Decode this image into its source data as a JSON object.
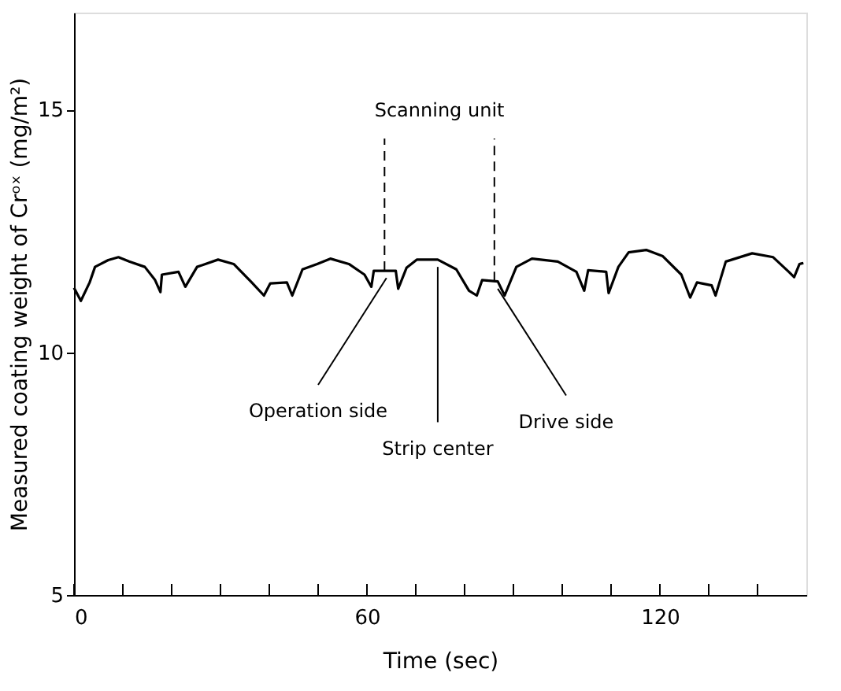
{
  "chart_data": {
    "type": "line",
    "xlabel": "Time    (sec)",
    "ylabel": "Measured coating weight of Crᵒˣ (mg/m²)",
    "x": [
      0,
      1.4,
      3.2,
      4.3,
      7.0,
      9.1,
      11.3,
      14.5,
      16.6,
      17.7,
      18.0,
      21.4,
      22.8,
      25.2,
      29.5,
      32.7,
      36.4,
      38.9,
      40.2,
      43.6,
      44.7,
      46.8,
      49.8,
      52.5,
      56.3,
      59.5,
      60.9,
      61.4,
      65.9,
      66.4,
      68.1,
      70.2,
      74.5,
      78.3,
      80.9,
      82.5,
      83.6,
      86.8,
      88.2,
      90.6,
      93.8,
      99.1,
      102.9,
      104.5,
      105.3,
      109.0,
      109.5,
      111.5,
      113.6,
      117.2,
      120.6,
      124.4,
      126.2,
      127.6,
      130.6,
      131.4,
      133.5,
      138.9,
      143.2,
      146.4,
      147.5,
      148.6,
      149.4
    ],
    "series": [
      {
        "color": "#000000",
        "values": [
          11.33,
          11.06,
          11.44,
          11.76,
          11.9,
          11.96,
          11.87,
          11.76,
          11.49,
          11.24,
          11.6,
          11.66,
          11.35,
          11.76,
          11.91,
          11.82,
          11.44,
          11.17,
          11.42,
          11.44,
          11.17,
          11.71,
          11.82,
          11.93,
          11.82,
          11.6,
          11.35,
          11.68,
          11.68,
          11.31,
          11.74,
          11.91,
          11.91,
          11.71,
          11.27,
          11.17,
          11.49,
          11.46,
          11.17,
          11.76,
          11.93,
          11.87,
          11.66,
          11.27,
          11.69,
          11.66,
          11.22,
          11.76,
          12.06,
          12.11,
          11.98,
          11.6,
          11.13,
          11.44,
          11.38,
          11.17,
          11.87,
          12.04,
          11.96,
          11.66,
          11.55,
          11.82,
          11.84
        ]
      }
    ],
    "xlim": [
      0,
      150
    ],
    "ylim": [
      5,
      17
    ],
    "xticks": [
      0,
      {
        "value": 10,
        "label": null
      },
      {
        "value": 20,
        "label": null
      },
      {
        "value": 30,
        "label": null
      },
      {
        "value": 40,
        "label": null
      },
      {
        "value": 50,
        "label": null
      },
      60,
      {
        "value": 70,
        "label": null
      },
      {
        "value": 80,
        "label": null
      },
      {
        "value": 90,
        "label": null
      },
      {
        "value": 100,
        "label": null
      },
      {
        "value": 110,
        "label": null
      },
      120,
      {
        "value": 130,
        "label": null
      },
      {
        "value": 140,
        "label": null
      }
    ],
    "yticks": [
      5,
      10,
      15
    ],
    "grid": false,
    "marker": "none",
    "line_style": "solid",
    "ref_lines": [
      {
        "axis": "x",
        "value": 63.6,
        "line_style": "dashed",
        "color": "#000000"
      },
      {
        "axis": "x",
        "value": 86.1,
        "line_style": "dashed",
        "color": "#000000"
      }
    ],
    "annotations": [
      "Scanning unit",
      {
        "text": "Operation side",
        "x": 64,
        "y": 11.68
      },
      {
        "text": "Strip center",
        "x": 74.5,
        "y": 11.91
      },
      {
        "text": "Drive side",
        "x": 86.8,
        "y": 11.46
      }
    ]
  }
}
